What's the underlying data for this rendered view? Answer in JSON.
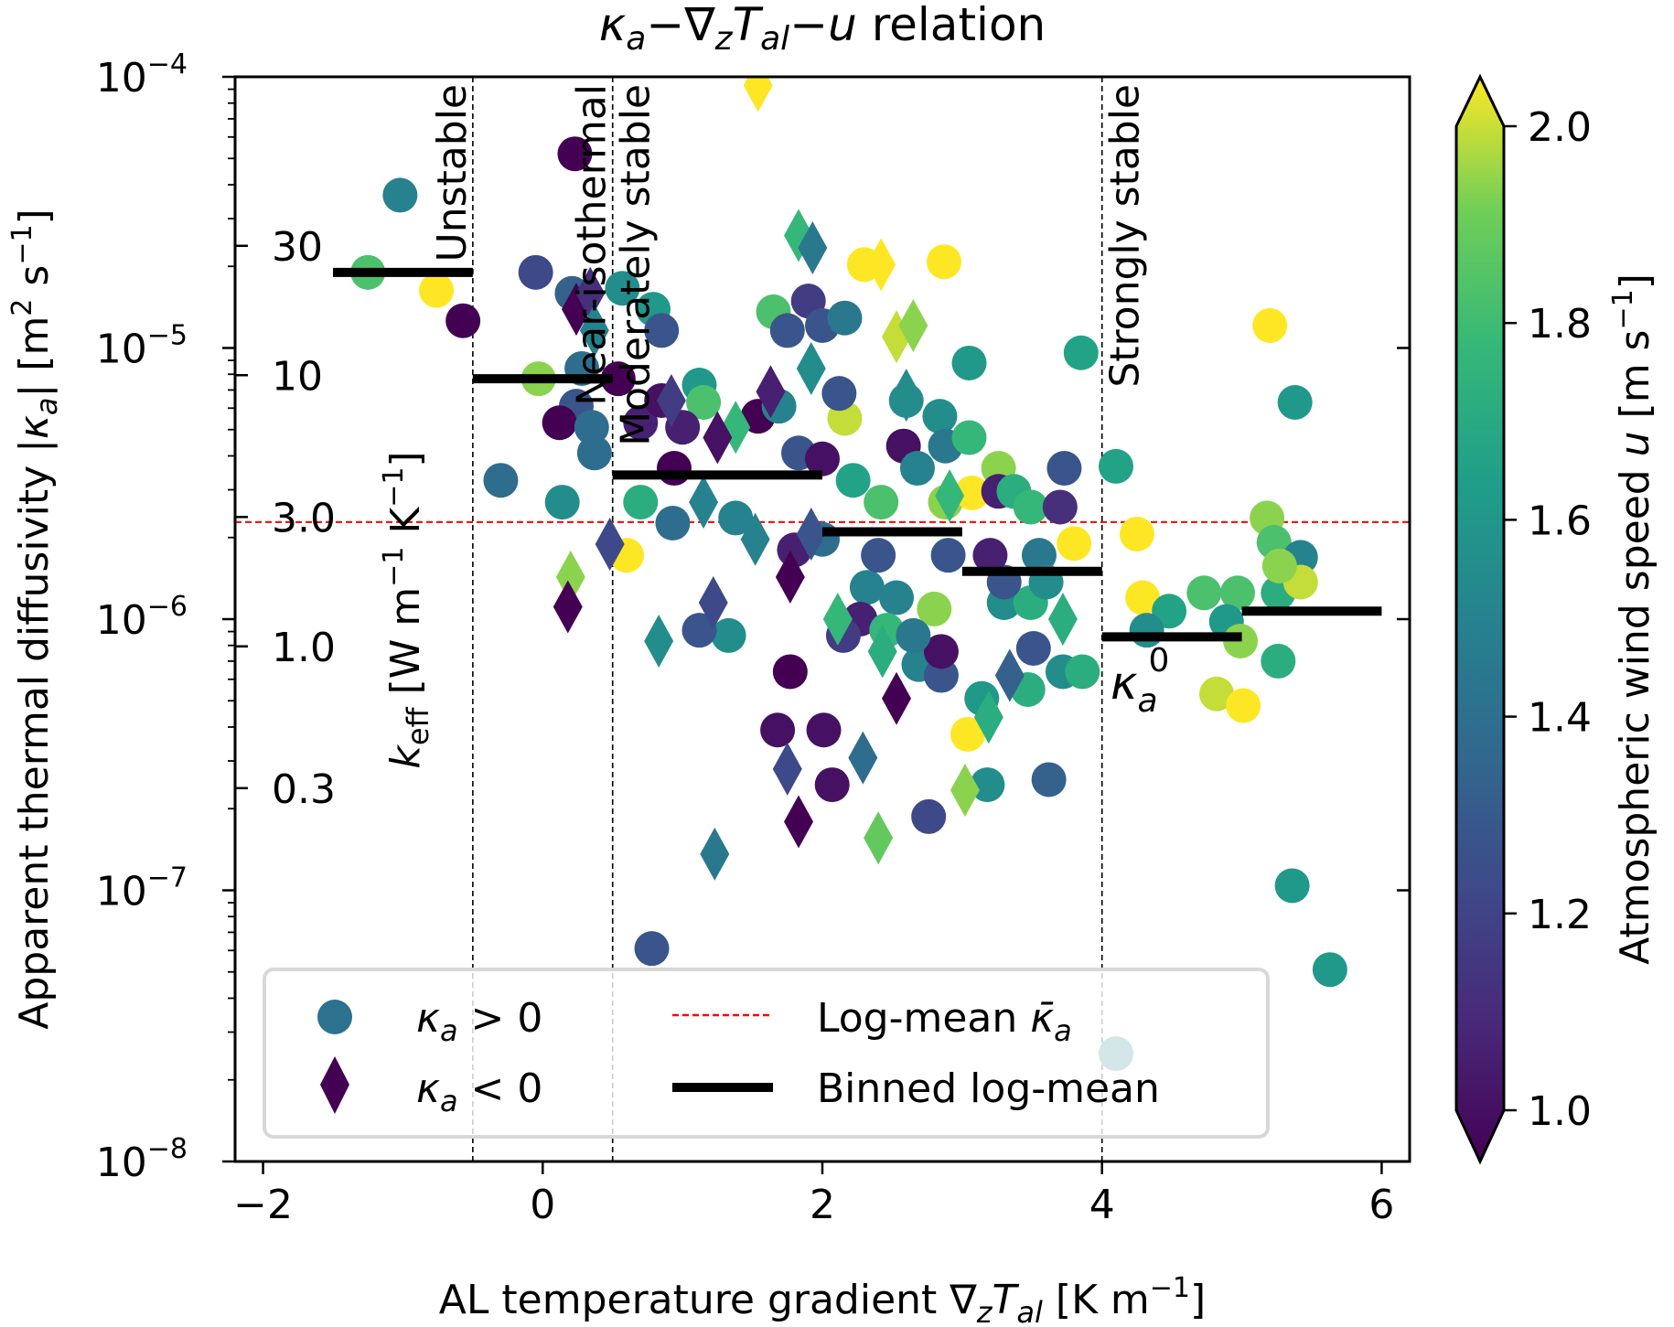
{
  "chart_data": {
    "type": "scatter",
    "title": "κa−∇zTal−u relation",
    "title_parts": {
      "kappa": "κ",
      "kappa_sub": "a",
      "dash1": "−",
      "nabla": "∇",
      "nabla_sub": "z",
      "T": "T",
      "T_sub": "al",
      "dash2": "−",
      "u": "u",
      "rest": " relation"
    },
    "xlabel": "AL temperature gradient ∇zTal [K m−1]",
    "xlabel_parts": {
      "pre": "AL temperature gradient ",
      "nabla": "∇",
      "sub_z": "z",
      "T": "T",
      "sub_al": "al",
      "unit": " [K m",
      "exp": "−1",
      "close": "]"
    },
    "ylabel": "Apparent thermal diffusivity |κa| [m2 s−1]",
    "ylabel_parts": {
      "pre": "Apparent thermal diffusivity |",
      "kappa": "κ",
      "sub": "a",
      "mid": "| [m",
      "exp1": "2",
      "s": " s",
      "exp2": "−1",
      "close": "]"
    },
    "secondary_ylabel": "keff [W m−1 K−1]",
    "secondary_ylabel_parts": {
      "k": "k",
      "sub": "eff",
      "unit": " [W m",
      "exp1": "−1",
      "K": " K",
      "exp2": "−1",
      "close": "]"
    },
    "colorbar_label": "Atmospheric wind speed u [m s−1]",
    "colorbar_label_parts": {
      "pre": "Atmospheric wind speed ",
      "u": "u",
      "unit": " [m s",
      "exp": "−1",
      "close": "]"
    },
    "xlim": [
      -2.2,
      6.2
    ],
    "ylim": [
      1e-08,
      0.0001
    ],
    "yscale": "log",
    "xticks": [
      -2,
      0,
      2,
      4,
      6
    ],
    "xtick_labels": [
      "−2",
      "0",
      "2",
      "4",
      "6"
    ],
    "yticks": [
      0.0001,
      1e-05,
      1e-06,
      1e-07,
      1e-08
    ],
    "ytick_labels": [
      {
        "base": "10",
        "exp": "−4"
      },
      {
        "base": "10",
        "exp": "−5"
      },
      {
        "base": "10",
        "exp": "−6"
      },
      {
        "base": "10",
        "exp": "−7"
      },
      {
        "base": "10",
        "exp": "−8"
      }
    ],
    "secondary_axis": {
      "conversion_factor": 1260000.0,
      "ticks": [
        30,
        10,
        3.0,
        1.0,
        0.3
      ],
      "tick_labels": [
        "30",
        "10",
        "3.0",
        "1.0",
        "0.3"
      ]
    },
    "colorbar": {
      "cmap": "viridis",
      "vmin": 1.0,
      "vmax": 2.0,
      "extend": "both",
      "ticks": [
        1.0,
        1.2,
        1.4,
        1.6,
        1.8,
        2.0
      ],
      "tick_labels": [
        "1.0",
        "1.2",
        "1.4",
        "1.6",
        "1.8",
        "2.0"
      ]
    },
    "regime_boundaries": [
      {
        "x": -0.5,
        "label": "Unstable",
        "label_side": "left"
      },
      {
        "x": 0.5,
        "label": "Near-isothermal",
        "label_side": "left"
      },
      {
        "x": 0.5,
        "label": "Moderately stable",
        "label_side": "right"
      },
      {
        "x": 4.0,
        "label": "Strongly stable",
        "label_side": "right"
      }
    ],
    "log_mean_line": {
      "value": 2.28e-06,
      "color": "#ff0000",
      "style": "dashed"
    },
    "binned_log_mean": [
      {
        "x0": -1.5,
        "x1": -0.5,
        "value": 1.9e-05
      },
      {
        "x0": -0.5,
        "x1": 0.5,
        "value": 7.7e-06
      },
      {
        "x0": 0.5,
        "x1": 2.0,
        "value": 3.4e-06
      },
      {
        "x0": 2.0,
        "x1": 3.0,
        "value": 2.1e-06
      },
      {
        "x0": 3.0,
        "x1": 4.0,
        "value": 1.5e-06
      },
      {
        "x0": 4.0,
        "x1": 5.0,
        "value": 8.6e-07
      },
      {
        "x0": 5.0,
        "x1": 6.0,
        "value": 1.07e-06
      }
    ],
    "annotation": {
      "text": "κa0",
      "base": "κ",
      "sub": "a",
      "sup": "0",
      "x": 4.1,
      "y": 5.5e-07
    },
    "legend": {
      "placement": "lower-left",
      "entries": [
        {
          "marker": "circle",
          "label_sym": "κ",
          "label_sub": "a",
          "label_rest": " > 0",
          "color": "#2c728e"
        },
        {
          "marker": "diamond",
          "label_sym": "κ",
          "label_sub": "a",
          "label_rest": " < 0",
          "color": "#440154"
        },
        {
          "marker": "dashed-line",
          "label": "Log-mean ",
          "label_sym": "κ̄",
          "label_sub": "a",
          "color": "#ff0000"
        },
        {
          "marker": "thick-line",
          "label": "Binned log-mean",
          "color": "#000000"
        }
      ]
    },
    "series": [
      {
        "name": "κa > 0",
        "marker": "circle",
        "points": [
          {
            "x": -1.02,
            "y": 3.66e-05,
            "u": 1.5
          },
          {
            "x": -1.25,
            "y": 1.9e-05,
            "u": 1.8
          },
          {
            "x": -0.76,
            "y": 1.63e-05,
            "u": 2.0
          },
          {
            "x": -0.57,
            "y": 1.26e-05,
            "u": 1.0
          },
          {
            "x": 0.23,
            "y": 5.2e-05,
            "u": 1.0
          },
          {
            "x": -0.05,
            "y": 1.9e-05,
            "u": 1.25
          },
          {
            "x": 0.21,
            "y": 1.59e-05,
            "u": 1.35
          },
          {
            "x": 0.57,
            "y": 1.66e-05,
            "u": 1.55
          },
          {
            "x": 0.79,
            "y": 1.39e-05,
            "u": 1.6
          },
          {
            "x": -0.03,
            "y": 7.7e-06,
            "u": 1.9
          },
          {
            "x": 0.28,
            "y": 8.4e-06,
            "u": 1.4
          },
          {
            "x": 0.24,
            "y": 6.1e-06,
            "u": 1.3
          },
          {
            "x": 0.12,
            "y": 5.3e-06,
            "u": 1.0
          },
          {
            "x": 0.35,
            "y": 5.1e-06,
            "u": 1.4
          },
          {
            "x": 0.37,
            "y": 4.1e-06,
            "u": 1.4
          },
          {
            "x": -0.3,
            "y": 3.25e-06,
            "u": 1.4
          },
          {
            "x": 0.14,
            "y": 2.7e-06,
            "u": 1.55
          },
          {
            "x": 0.54,
            "y": 7.7e-06,
            "u": 1.0
          },
          {
            "x": 0.7,
            "y": 5.3e-06,
            "u": 1.1
          },
          {
            "x": 0.85,
            "y": 1.16e-05,
            "u": 1.3
          },
          {
            "x": 1.12,
            "y": 7.3e-06,
            "u": 1.6
          },
          {
            "x": 1.15,
            "y": 6.3e-06,
            "u": 1.8
          },
          {
            "x": 0.85,
            "y": 6.4e-06,
            "u": 1.05
          },
          {
            "x": 1.0,
            "y": 5.1e-06,
            "u": 1.1
          },
          {
            "x": 0.94,
            "y": 3.6e-06,
            "u": 1.0
          },
          {
            "x": 0.7,
            "y": 2.7e-06,
            "u": 1.7
          },
          {
            "x": 0.6,
            "y": 1.72e-06,
            "u": 2.0
          },
          {
            "x": 0.93,
            "y": 2.26e-06,
            "u": 1.4
          },
          {
            "x": 1.38,
            "y": 2.36e-06,
            "u": 1.5
          },
          {
            "x": 1.54,
            "y": 5.6e-06,
            "u": 1.0
          },
          {
            "x": 1.69,
            "y": 6.1e-06,
            "u": 1.5
          },
          {
            "x": 1.65,
            "y": 1.36e-05,
            "u": 1.8
          },
          {
            "x": 1.75,
            "y": 1.16e-05,
            "u": 1.3
          },
          {
            "x": 1.9,
            "y": 1.49e-05,
            "u": 1.2
          },
          {
            "x": 2.0,
            "y": 1.21e-05,
            "u": 1.3
          },
          {
            "x": 2.16,
            "y": 1.29e-05,
            "u": 1.45
          },
          {
            "x": 2.16,
            "y": 5.5e-06,
            "u": 1.95
          },
          {
            "x": 2.12,
            "y": 6.8e-06,
            "u": 1.3
          },
          {
            "x": 2.3,
            "y": 2.03e-05,
            "u": 2.0
          },
          {
            "x": 2.87,
            "y": 2.08e-05,
            "u": 2.0
          },
          {
            "x": 1.83,
            "y": 4.1e-06,
            "u": 1.3
          },
          {
            "x": 2.0,
            "y": 3.9e-06,
            "u": 1.05
          },
          {
            "x": 2.22,
            "y": 3.25e-06,
            "u": 1.65
          },
          {
            "x": 2.42,
            "y": 2.7e-06,
            "u": 1.8
          },
          {
            "x": 2.58,
            "y": 4.35e-06,
            "u": 1.05
          },
          {
            "x": 2.6,
            "y": 6.4e-06,
            "u": 1.55
          },
          {
            "x": 2.68,
            "y": 3.6e-06,
            "u": 1.5
          },
          {
            "x": 2.84,
            "y": 5.6e-06,
            "u": 1.55
          },
          {
            "x": 2.88,
            "y": 4.35e-06,
            "u": 1.45
          },
          {
            "x": 3.05,
            "y": 8.8e-06,
            "u": 1.6
          },
          {
            "x": 3.05,
            "y": 4.67e-06,
            "u": 1.75
          },
          {
            "x": 2.88,
            "y": 2.7e-06,
            "u": 1.9
          },
          {
            "x": 3.07,
            "y": 2.92e-06,
            "u": 2.0
          },
          {
            "x": 3.26,
            "y": 3.6e-06,
            "u": 1.9
          },
          {
            "x": 3.26,
            "y": 2.96e-06,
            "u": 1.1
          },
          {
            "x": 3.37,
            "y": 2.96e-06,
            "u": 1.7
          },
          {
            "x": 3.49,
            "y": 2.59e-06,
            "u": 1.75
          },
          {
            "x": 3.73,
            "y": 3.6e-06,
            "u": 1.3
          },
          {
            "x": 3.7,
            "y": 2.59e-06,
            "u": 1.15
          },
          {
            "x": 3.85,
            "y": 9.6e-06,
            "u": 1.65
          },
          {
            "x": 4.1,
            "y": 3.66e-06,
            "u": 1.65
          },
          {
            "x": 4.25,
            "y": 2.06e-06,
            "u": 2.0
          },
          {
            "x": 4.29,
            "y": 1.2e-06,
            "u": 2.0
          },
          {
            "x": 4.48,
            "y": 1.07e-06,
            "u": 1.65
          },
          {
            "x": 4.32,
            "y": 9.1e-07,
            "u": 1.55
          },
          {
            "x": 4.73,
            "y": 1.25e-06,
            "u": 1.8
          },
          {
            "x": 4.97,
            "y": 1.25e-06,
            "u": 1.8
          },
          {
            "x": 4.89,
            "y": 9.8e-07,
            "u": 1.6
          },
          {
            "x": 4.99,
            "y": 8.3e-07,
            "u": 1.9
          },
          {
            "x": 4.82,
            "y": 5.3e-07,
            "u": 1.95
          },
          {
            "x": 5.01,
            "y": 4.8e-07,
            "u": 2.0
          },
          {
            "x": 5.2,
            "y": 1.21e-05,
            "u": 2.0
          },
          {
            "x": 5.26,
            "y": 1.25e-06,
            "u": 1.7
          },
          {
            "x": 5.18,
            "y": 2.36e-06,
            "u": 1.9
          },
          {
            "x": 5.23,
            "y": 1.92e-06,
            "u": 1.8
          },
          {
            "x": 5.42,
            "y": 1.69e-06,
            "u": 1.5
          },
          {
            "x": 5.38,
            "y": 6.3e-06,
            "u": 1.6
          },
          {
            "x": 5.26,
            "y": 7e-07,
            "u": 1.7
          },
          {
            "x": 5.36,
            "y": 1.04e-07,
            "u": 1.6
          },
          {
            "x": 5.63,
            "y": 5.1e-08,
            "u": 1.6
          },
          {
            "x": 5.42,
            "y": 1.37e-06,
            "u": 1.95
          },
          {
            "x": 5.27,
            "y": 1.57e-06,
            "u": 1.9
          },
          {
            "x": 2.32,
            "y": 1.31e-06,
            "u": 1.5
          },
          {
            "x": 2.53,
            "y": 1.2e-06,
            "u": 1.5
          },
          {
            "x": 2.27,
            "y": 1e-06,
            "u": 1.1
          },
          {
            "x": 2.46,
            "y": 9.1e-07,
            "u": 1.75
          },
          {
            "x": 2.69,
            "y": 6.8e-07,
            "u": 1.5
          },
          {
            "x": 2.8,
            "y": 1.09e-06,
            "u": 1.9
          },
          {
            "x": 2.85,
            "y": 6.2e-07,
            "u": 1.3
          },
          {
            "x": 2.85,
            "y": 7.6e-07,
            "u": 1.05
          },
          {
            "x": 1.77,
            "y": 6.4e-07,
            "u": 1.0
          },
          {
            "x": 1.68,
            "y": 3.9e-07,
            "u": 1.05
          },
          {
            "x": 2.01,
            "y": 3.9e-07,
            "u": 1.05
          },
          {
            "x": 2.07,
            "y": 2.45e-07,
            "u": 1.05
          },
          {
            "x": 2.76,
            "y": 1.87e-07,
            "u": 1.25
          },
          {
            "x": 3.18,
            "y": 2.45e-07,
            "u": 1.55
          },
          {
            "x": 3.14,
            "y": 5.1e-07,
            "u": 1.6
          },
          {
            "x": 3.47,
            "y": 5.5e-07,
            "u": 1.7
          },
          {
            "x": 3.04,
            "y": 3.76e-07,
            "u": 2.0
          },
          {
            "x": 3.62,
            "y": 2.56e-07,
            "u": 1.35
          },
          {
            "x": 3.3,
            "y": 1.15e-06,
            "u": 1.55
          },
          {
            "x": 3.49,
            "y": 1.15e-06,
            "u": 1.7
          },
          {
            "x": 3.3,
            "y": 1.37e-06,
            "u": 1.3
          },
          {
            "x": 3.51,
            "y": 7.8e-07,
            "u": 1.3
          },
          {
            "x": 3.72,
            "y": 6.4e-07,
            "u": 1.55
          },
          {
            "x": 3.86,
            "y": 6.4e-07,
            "u": 1.7
          },
          {
            "x": 2.65,
            "y": 8.7e-07,
            "u": 1.45
          },
          {
            "x": 1.33,
            "y": 8.7e-07,
            "u": 1.55
          },
          {
            "x": 1.12,
            "y": 9.1e-07,
            "u": 1.3
          },
          {
            "x": 2.15,
            "y": 8.7e-07,
            "u": 1.2
          },
          {
            "x": 0.78,
            "y": 6.1e-08,
            "u": 1.3
          },
          {
            "x": 4.1,
            "y": 2.5e-08,
            "u": 1.5
          },
          {
            "x": 2.0,
            "y": 1.97e-06,
            "u": 1.4
          },
          {
            "x": 1.8,
            "y": 1.8e-06,
            "u": 1.1
          },
          {
            "x": 2.4,
            "y": 1.72e-06,
            "u": 1.3
          },
          {
            "x": 3.55,
            "y": 1.72e-06,
            "u": 1.45
          },
          {
            "x": 3.8,
            "y": 1.9e-06,
            "u": 2.0
          },
          {
            "x": 2.9,
            "y": 1.72e-06,
            "u": 1.3
          },
          {
            "x": 3.2,
            "y": 1.72e-06,
            "u": 1.1
          },
          {
            "x": 3.6,
            "y": 1.37e-06,
            "u": 1.55
          }
        ]
      },
      {
        "name": "κa < 0",
        "marker": "diamond",
        "points": [
          {
            "x": 0.24,
            "y": 1.39e-05,
            "u": 1.0
          },
          {
            "x": 0.34,
            "y": 1.59e-05,
            "u": 1.15
          },
          {
            "x": 0.37,
            "y": 1.16e-05,
            "u": 1.5
          },
          {
            "x": 0.2,
            "y": 1.43e-06,
            "u": 1.9
          },
          {
            "x": 0.18,
            "y": 1.11e-06,
            "u": 1.0
          },
          {
            "x": 0.48,
            "y": 1.89e-06,
            "u": 1.25
          },
          {
            "x": 0.83,
            "y": 8.3e-07,
            "u": 1.55
          },
          {
            "x": 1.15,
            "y": 2.7e-06,
            "u": 1.5
          },
          {
            "x": 1.22,
            "y": 1.15e-06,
            "u": 1.25
          },
          {
            "x": 1.23,
            "y": 1.36e-07,
            "u": 1.45
          },
          {
            "x": 1.38,
            "y": 5.1e-06,
            "u": 1.75
          },
          {
            "x": 1.25,
            "y": 4.67e-06,
            "u": 1.05
          },
          {
            "x": 1.52,
            "y": 1.97e-06,
            "u": 1.5
          },
          {
            "x": 1.54,
            "y": 9.3e-05,
            "u": 2.0
          },
          {
            "x": 1.83,
            "y": 2.6e-05,
            "u": 1.75
          },
          {
            "x": 1.93,
            "y": 2.34e-05,
            "u": 1.45
          },
          {
            "x": 2.42,
            "y": 2.03e-05,
            "u": 2.0
          },
          {
            "x": 2.53,
            "y": 1.1e-05,
            "u": 1.95
          },
          {
            "x": 2.65,
            "y": 1.21e-05,
            "u": 1.9
          },
          {
            "x": 2.6,
            "y": 6.7e-06,
            "u": 1.55
          },
          {
            "x": 1.92,
            "y": 8.4e-06,
            "u": 1.55
          },
          {
            "x": 1.63,
            "y": 6.9e-06,
            "u": 1.1
          },
          {
            "x": 1.77,
            "y": 1.43e-06,
            "u": 1.0
          },
          {
            "x": 2.11,
            "y": 1e-06,
            "u": 1.75
          },
          {
            "x": 1.92,
            "y": 2.06e-06,
            "u": 1.3
          },
          {
            "x": 1.75,
            "y": 2.8e-07,
            "u": 1.25
          },
          {
            "x": 1.83,
            "y": 1.79e-07,
            "u": 1.0
          },
          {
            "x": 2.29,
            "y": 3.08e-07,
            "u": 1.4
          },
          {
            "x": 2.4,
            "y": 1.56e-07,
            "u": 1.85
          },
          {
            "x": 2.53,
            "y": 5.1e-07,
            "u": 1.0
          },
          {
            "x": 2.43,
            "y": 7.6e-07,
            "u": 1.7
          },
          {
            "x": 2.91,
            "y": 2.85e-06,
            "u": 1.75
          },
          {
            "x": 3.02,
            "y": 2.34e-07,
            "u": 1.9
          },
          {
            "x": 3.19,
            "y": 4.35e-07,
            "u": 1.7
          },
          {
            "x": 3.34,
            "y": 6.2e-07,
            "u": 1.35
          },
          {
            "x": 3.72,
            "y": 1e-06,
            "u": 1.7
          },
          {
            "x": 0.92,
            "y": 6.4e-06,
            "u": 1.2
          }
        ]
      }
    ]
  }
}
